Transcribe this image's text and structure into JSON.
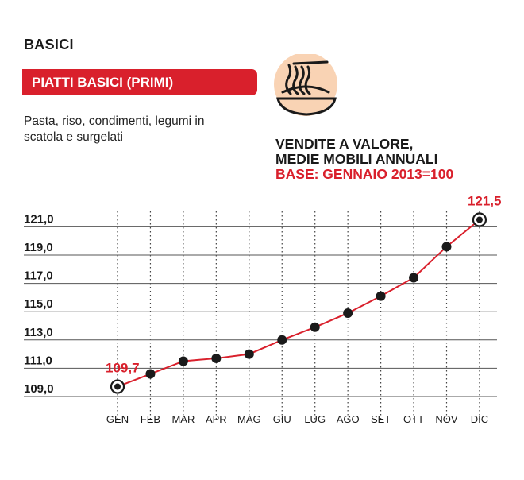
{
  "header": {
    "section": "BASICI",
    "banner": "PIATTI BASICI (PRIMI)",
    "description": "Pasta, riso, condimenti, legumi in scatola e surgelati",
    "icon": "pasta-bowl-icon"
  },
  "chart_heading": {
    "line1": "VENDITE A VALORE,",
    "line2": "MEDIE MOBILI ANNUALI",
    "line3": "BASE: GENNAIO 2013=100"
  },
  "colors": {
    "accent": "#d9202c",
    "icon_bg": "#f9d3b4",
    "line": "#d9202c",
    "marker": "#1a1a1a"
  },
  "chart_data": {
    "type": "line",
    "categories": [
      "GEN",
      "FEB",
      "MAR",
      "APR",
      "MAG",
      "GIU",
      "LUG",
      "AGO",
      "SET",
      "OTT",
      "NOV",
      "DIC"
    ],
    "values": [
      109.7,
      110.6,
      111.5,
      111.7,
      112.0,
      113.0,
      113.9,
      114.9,
      116.1,
      117.4,
      119.6,
      121.5
    ],
    "ylim": [
      108.5,
      122.0
    ],
    "yticks": [
      109.0,
      111.0,
      113.0,
      115.0,
      117.0,
      119.0,
      121.0
    ],
    "ytick_labels": [
      "109,0",
      "111,0",
      "113,0",
      "115,0",
      "117,0",
      "119,0",
      "121,0"
    ],
    "annotations": [
      {
        "index": 0,
        "text": "109,7"
      },
      {
        "index": 11,
        "text": "121,5"
      }
    ],
    "xlabel": "",
    "ylabel": "",
    "grid": true
  }
}
